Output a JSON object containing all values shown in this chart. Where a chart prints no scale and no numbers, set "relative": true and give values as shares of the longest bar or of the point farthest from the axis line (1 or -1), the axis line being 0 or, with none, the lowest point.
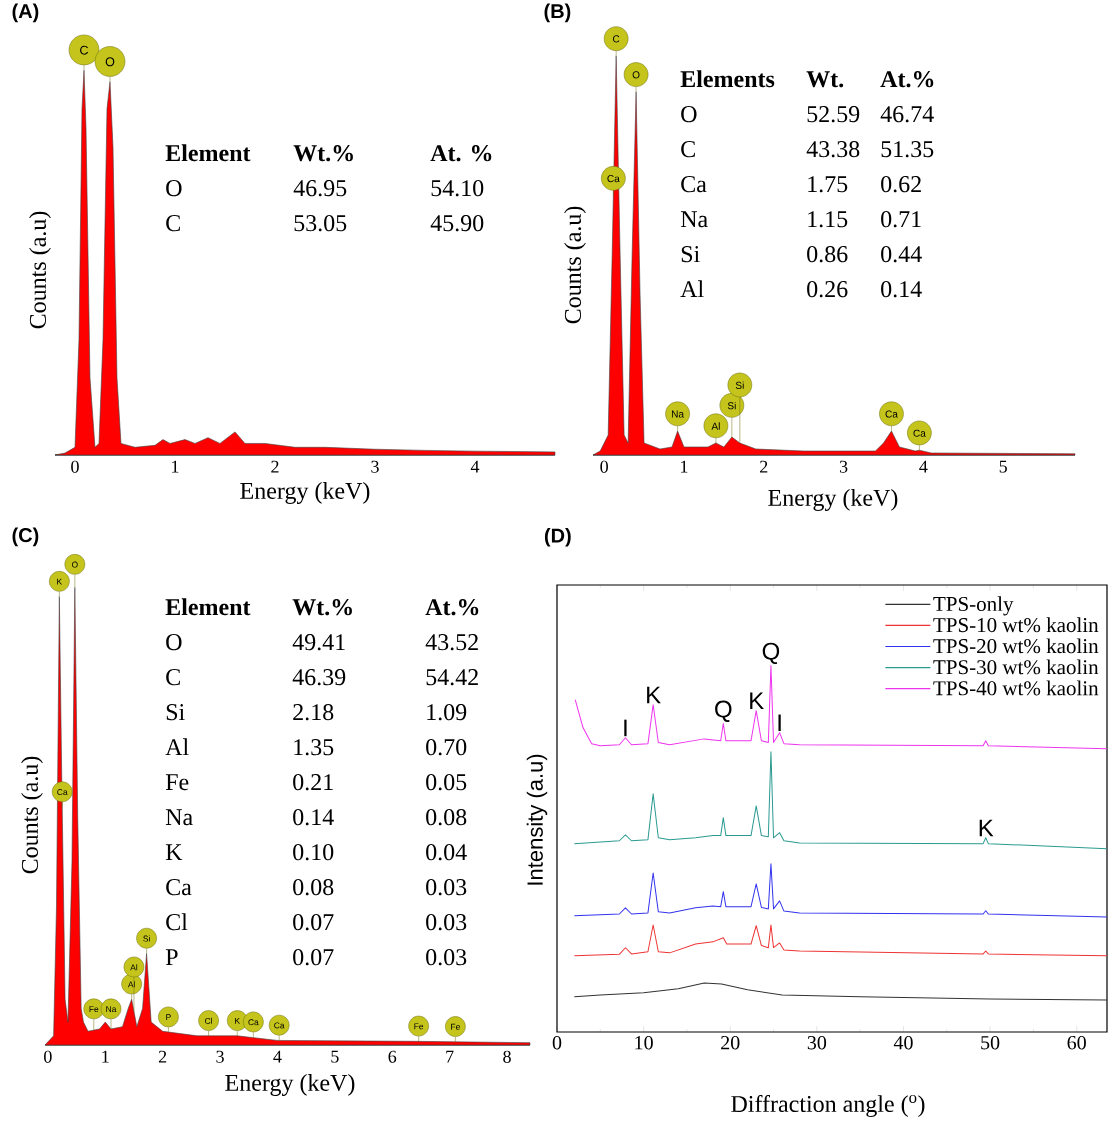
{
  "chart_data": [
    {
      "type": "area",
      "title": "(A)",
      "xlabel": "Energy (keV)",
      "ylabel": "Counts (a.u)",
      "relative": true,
      "xlim": [
        -0.2,
        4.8
      ],
      "xticks": [
        0,
        1,
        2,
        3,
        4
      ],
      "x": [
        -0.2,
        -0.1,
        0.0,
        0.04,
        0.07,
        0.09,
        0.11,
        0.15,
        0.2,
        0.24,
        0.28,
        0.32,
        0.35,
        0.38,
        0.42,
        0.46,
        0.6,
        0.8,
        0.88,
        0.95,
        1.1,
        1.2,
        1.33,
        1.45,
        1.6,
        1.7,
        1.9,
        2.2,
        2.5,
        3.0,
        3.5,
        4.0,
        4.8
      ],
      "series": [
        {
          "color": "#ff0000",
          "values": [
            0,
            0.005,
            0.02,
            0.3,
            0.9,
            1,
            0.85,
            0.2,
            0.02,
            0.03,
            0.3,
            0.9,
            0.97,
            0.8,
            0.2,
            0.03,
            0.02,
            0.025,
            0.04,
            0.03,
            0.04,
            0.03,
            0.045,
            0.03,
            0.06,
            0.03,
            0.03,
            0.02,
            0.02,
            0.015,
            0.012,
            0.01,
            0.008
          ]
        }
      ],
      "annotations": [
        "Element",
        "Wt.%",
        "At. %",
        "O",
        "46.95",
        "54.10",
        "C",
        "53.05",
        "45.90",
        {
          "text": "C",
          "x": 0.09,
          "y": 1
        },
        {
          "text": "O",
          "x": 0.35,
          "y": 0.97
        }
      ]
    },
    {
      "type": "area",
      "title": "(B)",
      "xlabel": "Energy (keV)",
      "ylabel": "Counts (a.u)",
      "relative": true,
      "xlim": [
        -0.14,
        5.9
      ],
      "xticks": [
        0,
        1,
        2,
        3,
        4,
        5
      ],
      "x": [
        -0.14,
        -0.05,
        0.05,
        0.1,
        0.15,
        0.2,
        0.25,
        0.3,
        0.35,
        0.4,
        0.45,
        0.5,
        0.7,
        0.85,
        0.92,
        1.0,
        1.3,
        1.4,
        1.5,
        1.6,
        1.7,
        1.9,
        2.5,
        3.4,
        3.5,
        3.6,
        3.7,
        3.9,
        3.95,
        4.1,
        5.9
      ],
      "series": [
        {
          "color": "#ff0000",
          "values": [
            0,
            0.01,
            0.05,
            0.5,
            1,
            0.5,
            0.05,
            0.03,
            0.5,
            0.91,
            0.4,
            0.03,
            0.015,
            0.02,
            0.06,
            0.02,
            0.02,
            0.03,
            0.02,
            0.045,
            0.03,
            0.015,
            0.01,
            0.01,
            0.03,
            0.06,
            0.02,
            0.01,
            0.012,
            0.005,
            0.003
          ]
        }
      ],
      "annotations": [
        "Elements",
        "Wt.",
        "At.%",
        "O",
        "52.59",
        "46.74",
        "C",
        "43.38",
        "51.35",
        "Ca",
        "1.75",
        "0.62",
        "Na",
        "1.15",
        "0.71",
        "Si",
        "0.86",
        "0.44",
        "Al",
        "0.26",
        "0.14",
        {
          "text": "C",
          "x": 0.15,
          "y": 1
        },
        {
          "text": "O",
          "x": 0.4,
          "y": 0.91
        },
        {
          "text": "Ca",
          "x": 0.115,
          "y": 0.65
        },
        {
          "text": "Na",
          "x": 0.92,
          "y": 0.06
        },
        {
          "text": "Al",
          "x": 1.4,
          "y": 0.03
        },
        {
          "text": "Si",
          "x": 1.6,
          "y": 0.045
        },
        {
          "text": "Si",
          "x": 1.7,
          "y": 0.03
        },
        {
          "text": "Ca",
          "x": 3.6,
          "y": 0.06
        },
        {
          "text": "Ca",
          "x": 3.95,
          "y": 0.012
        }
      ]
    },
    {
      "type": "area",
      "title": "(C)",
      "xlabel": "Energy (keV)",
      "ylabel": "Counts (a.u)",
      "relative": true,
      "xlim": [
        -0.05,
        8.4
      ],
      "xticks": [
        0,
        1,
        2,
        3,
        4,
        5,
        6,
        7,
        8
      ],
      "x": [
        -0.05,
        0.1,
        0.15,
        0.2,
        0.24,
        0.3,
        0.35,
        0.42,
        0.47,
        0.52,
        0.58,
        0.62,
        0.7,
        0.9,
        1.0,
        1.1,
        1.3,
        1.4,
        1.46,
        1.55,
        1.65,
        1.72,
        1.8,
        2.0,
        2.6,
        3.3,
        4.0,
        6.4,
        8.4
      ],
      "series": [
        {
          "color": "#ff0000",
          "values": [
            0,
            0.02,
            0.3,
            0.98,
            0.6,
            0.1,
            0.05,
            0.4,
            1,
            0.5,
            0.08,
            0.05,
            0.03,
            0.035,
            0.05,
            0.035,
            0.04,
            0.08,
            0.1,
            0.04,
            0.08,
            0.2,
            0.05,
            0.03,
            0.02,
            0.02,
            0.01,
            0.008,
            0.005
          ]
        }
      ],
      "annotations": [
        "Element",
        "Wt.%",
        "At.%",
        "O",
        "49.41",
        "43.52",
        "C",
        "46.39",
        "54.42",
        "Si",
        "2.18",
        "1.09",
        "Al",
        "1.35",
        "0.70",
        "Fe",
        "0.21",
        "0.05",
        "Na",
        "0.14",
        "0.08",
        "K",
        "0.10",
        "0.04",
        "Ca",
        "0.08",
        "0.03",
        "Cl",
        "0.07",
        "0.03",
        "P",
        "0.07",
        "0.03",
        {
          "text": "K",
          "x": 0.2,
          "y": 0.98
        },
        {
          "text": "O",
          "x": 0.47,
          "y": 1
        },
        {
          "text": "Ca",
          "x": 0.25,
          "y": 0.52
        },
        {
          "text": "Al",
          "x": 1.46,
          "y": 0.1
        },
        {
          "text": "Si",
          "x": 1.72,
          "y": 0.2
        },
        {
          "text": "Fe",
          "x": 0.8,
          "y": 0.0325
        },
        {
          "text": "Na",
          "x": 1.1,
          "y": 0.035
        },
        {
          "text": "Al",
          "x": 1.5,
          "y": 0.073
        },
        {
          "text": "P",
          "x": 2.1,
          "y": 0.028
        },
        {
          "text": "Cl",
          "x": 2.8,
          "y": 0.02
        },
        {
          "text": "K",
          "x": 3.3,
          "y": 0.02
        },
        {
          "text": "Ca",
          "x": 3.58,
          "y": 0.017
        },
        {
          "text": "Ca",
          "x": 4.03,
          "y": 0.01
        },
        {
          "text": "Fe",
          "x": 6.46,
          "y": 0.008
        },
        {
          "text": "Fe",
          "x": 7.1,
          "y": 0.007
        }
      ]
    },
    {
      "type": "line",
      "title": "(D)",
      "xlabel": "Diffraction angle ($^{o}$)",
      "ylabel": "Intensity (a.u)",
      "relative": true,
      "xlim": [
        0,
        63.5
      ],
      "xticks": [
        0,
        10,
        20,
        30,
        40,
        50,
        60
      ],
      "legend": "top right",
      "series": [
        {
          "name": "TPS-only",
          "color": "#333333",
          "x": [
            2,
            5,
            10,
            14,
            17,
            19,
            22,
            26,
            35,
            50,
            63.5
          ],
          "values": [
            0.096,
            0.101,
            0.107,
            0.118,
            0.134,
            0.131,
            0.115,
            0.101,
            0.096,
            0.09,
            0.087
          ]
        },
        {
          "name": "TPS-10 wt% kaolin",
          "color": "#ee3333",
          "x": [
            2,
            7.2,
            7.9,
            8.6,
            10.5,
            11.1,
            11.7,
            13,
            16,
            18,
            19.2,
            19.6,
            22.4,
            23.0,
            23.6,
            24.4,
            24.7,
            25.0,
            25.7,
            26.2,
            28,
            49.2,
            49.5,
            49.8,
            63.5
          ],
          "values": [
            0.208,
            0.212,
            0.23,
            0.213,
            0.219,
            0.292,
            0.219,
            0.216,
            0.24,
            0.246,
            0.257,
            0.24,
            0.24,
            0.29,
            0.236,
            0.23,
            0.292,
            0.23,
            0.243,
            0.224,
            0.221,
            0.213,
            0.221,
            0.213,
            0.208
          ]
        },
        {
          "name": "TPS-20 wt% kaolin",
          "color": "#3333ee",
          "x": [
            2,
            7.2,
            7.9,
            8.6,
            10.5,
            11.1,
            11.7,
            13,
            16,
            18,
            18.9,
            19.2,
            19.5,
            22.4,
            23.0,
            23.6,
            24.4,
            24.7,
            25.0,
            25.7,
            26.2,
            28,
            49.2,
            49.5,
            49.8,
            63.5
          ],
          "values": [
            0.317,
            0.322,
            0.339,
            0.322,
            0.325,
            0.434,
            0.328,
            0.325,
            0.339,
            0.344,
            0.342,
            0.383,
            0.342,
            0.342,
            0.404,
            0.34,
            0.336,
            0.459,
            0.336,
            0.358,
            0.33,
            0.325,
            0.322,
            0.331,
            0.322,
            0.314
          ]
        },
        {
          "name": "TPS-30 wt% kaolin",
          "color": "#2a9a90",
          "x": [
            2,
            7.2,
            7.9,
            8.6,
            10.5,
            11.1,
            11.7,
            13,
            16,
            18,
            18.9,
            19.2,
            19.5,
            22.4,
            23.0,
            23.6,
            24.4,
            24.7,
            25.0,
            25.7,
            26.2,
            28,
            49.2,
            49.5,
            49.8,
            63.5
          ],
          "values": [
            0.514,
            0.522,
            0.538,
            0.522,
            0.525,
            0.65,
            0.53,
            0.525,
            0.53,
            0.536,
            0.536,
            0.585,
            0.536,
            0.536,
            0.617,
            0.536,
            0.533,
            0.765,
            0.53,
            0.544,
            0.522,
            0.516,
            0.514,
            0.53,
            0.514,
            0.5
          ]
        },
        {
          "name": "TPS-40 wt% kaolin",
          "color": "#ee33ee",
          "x": [
            2.1,
            3,
            4,
            5,
            7.2,
            7.9,
            8.6,
            10.5,
            11.1,
            11.7,
            13,
            17,
            18.9,
            19.2,
            19.5,
            22.4,
            23.0,
            23.6,
            24.4,
            24.7,
            25.0,
            25.7,
            26.2,
            28,
            49.2,
            49.5,
            49.8,
            63.5
          ],
          "values": [
            0.907,
            0.831,
            0.787,
            0.781,
            0.784,
            0.803,
            0.784,
            0.787,
            0.893,
            0.79,
            0.784,
            0.8,
            0.795,
            0.842,
            0.795,
            0.795,
            0.877,
            0.795,
            0.79,
            1.0,
            0.79,
            0.817,
            0.787,
            0.784,
            0.781,
            0.795,
            0.781,
            0.773
          ]
        }
      ],
      "annotations": [
        {
          "text": "I",
          "x": 7.9,
          "y": 0.803
        },
        {
          "text": "K",
          "x": 11.1,
          "y": 0.893
        },
        {
          "text": "Q",
          "x": 19.2,
          "y": 0.842
        },
        {
          "text": "K",
          "x": 23.0,
          "y": 0.877
        },
        {
          "text": "Q",
          "x": 24.7,
          "y": 1.0
        },
        {
          "text": "I",
          "x": 25.7,
          "y": 0.817
        },
        {
          "text": "K",
          "x": 49.5,
          "y": 0.53
        }
      ]
    }
  ]
}
